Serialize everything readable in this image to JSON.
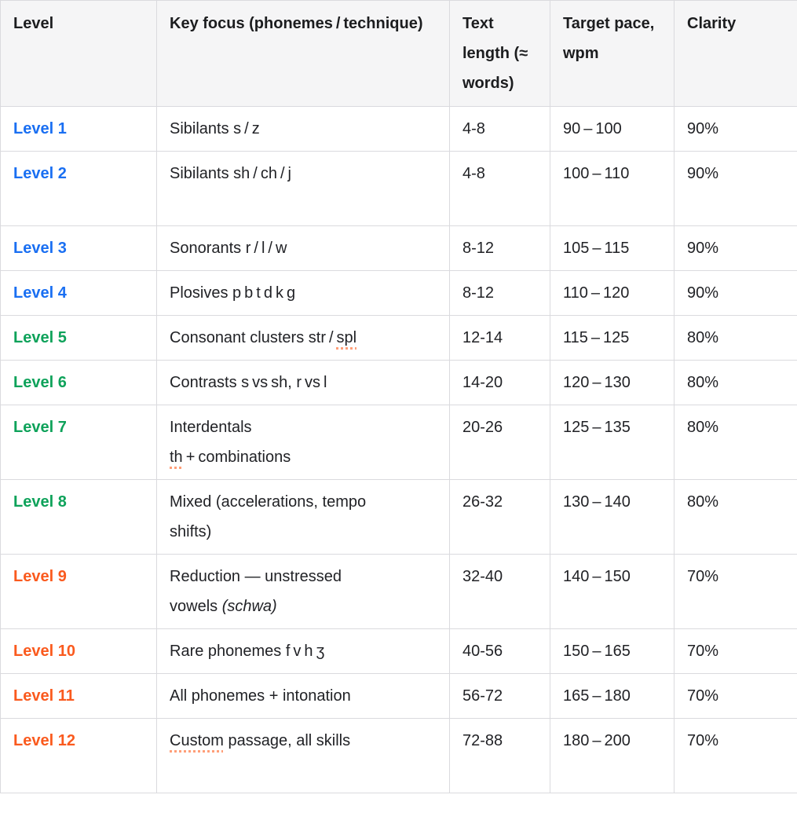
{
  "table": {
    "headers": [
      "Level",
      "Key focus (phonemes / technique)",
      "Text length (≈ words)",
      "Target pace, wpm",
      "Clarity"
    ],
    "rows": [
      {
        "level": "Level 1",
        "group": "blue",
        "focus": [
          {
            "t": "Sibilants s / z"
          }
        ],
        "length": "4-8",
        "pace": "90 – 100",
        "clarity": "90%"
      },
      {
        "level": "Level 2",
        "group": "blue",
        "focus": [
          {
            "t": "Sibilants sh / ch / j\n"
          }
        ],
        "length": "4-8",
        "pace": "100 – 110",
        "clarity": "90%"
      },
      {
        "level": "Level 3",
        "group": "blue",
        "focus": [
          {
            "t": "Sonorants r / l / w"
          }
        ],
        "length": "8-12",
        "pace": "105 – 115",
        "clarity": "90%"
      },
      {
        "level": "Level 4",
        "group": "blue",
        "focus": [
          {
            "t": "Plosives p b t d k g"
          }
        ],
        "length": "8-12",
        "pace": "110 – 120",
        "clarity": "90%"
      },
      {
        "level": "Level 5",
        "group": "green",
        "focus": [
          {
            "t": "Consonant clusters str / "
          },
          {
            "t": "spl",
            "u": true
          }
        ],
        "length": "12-14",
        "pace": "115 – 125",
        "clarity": "80%"
      },
      {
        "level": "Level 6",
        "group": "green",
        "focus": [
          {
            "t": "Contrasts s vs sh, r vs l"
          }
        ],
        "length": "14-20",
        "pace": "120 – 130",
        "clarity": "80%"
      },
      {
        "level": "Level 7",
        "group": "green",
        "focus": [
          {
            "t": "Interdentals\n"
          },
          {
            "t": "th",
            "u": true
          },
          {
            "t": " + combinations"
          }
        ],
        "length": "20-26",
        "pace": "125 – 135",
        "clarity": "80%"
      },
      {
        "level": "Level 8",
        "group": "green",
        "focus": [
          {
            "t": "Mixed (accelerations, tempo\nshifts)"
          }
        ],
        "length": "26-32",
        "pace": "130 – 140",
        "clarity": "80%"
      },
      {
        "level": "Level 9",
        "group": "orange",
        "focus": [
          {
            "t": "Reduction — unstressed\nvowels "
          },
          {
            "t": "(schwa)",
            "i": true
          }
        ],
        "length": "32-40",
        "pace": "140 – 150",
        "clarity": "70%"
      },
      {
        "level": "Level 10",
        "group": "orange",
        "focus": [
          {
            "t": "Rare phonemes f v h ʒ"
          }
        ],
        "length": "40-56",
        "pace": "150 – 165",
        "clarity": "70%"
      },
      {
        "level": "Level 11",
        "group": "orange",
        "focus": [
          {
            "t": "All phonemes + intonation"
          }
        ],
        "length": "56-72",
        "pace": "165 – 180",
        "clarity": "70%"
      },
      {
        "level": "Level 12",
        "group": "orange",
        "focus": [
          {
            "t": "Custom",
            "u": true
          },
          {
            "t": " passage, all skills\n"
          }
        ],
        "length": "72-88",
        "pace": "180 – 200",
        "clarity": "70%"
      }
    ]
  },
  "colors": {
    "blue": "#1a6ff2",
    "green": "#0ea25a",
    "orange": "#fa5a1e",
    "spellcheck_underline": "#ff9e78",
    "header_bg": "#f5f5f6",
    "border": "#dadade",
    "text": "#212226"
  }
}
